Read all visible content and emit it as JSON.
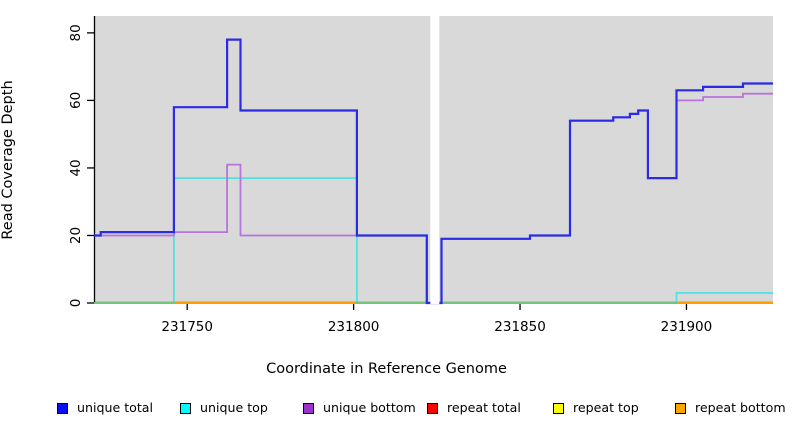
{
  "chart_data": {
    "type": "line",
    "subtype": "step",
    "title": "",
    "xlabel": "Coordinate in Reference Genome",
    "ylabel": "Read Coverage Depth",
    "xlim": [
      231722,
      231926
    ],
    "ylim": [
      0,
      85
    ],
    "xticks": [
      "231750",
      "231800",
      "231850",
      "231900"
    ],
    "xtick_values": [
      231750,
      231800,
      231850,
      231900
    ],
    "yticks": [
      "0",
      "20",
      "40",
      "60",
      "80"
    ],
    "ytick_values": [
      0,
      20,
      40,
      60,
      80
    ],
    "grid": false,
    "plot_background": "#D9D9D9",
    "axis_color": "#000000",
    "gap_region": {
      "x0": 231823.05,
      "x1": 231825.75,
      "color": "#FFFFFF",
      "meaning": "missing-data white band"
    },
    "series": [
      {
        "name": "repeat total",
        "color": "#E60000",
        "width": 2,
        "opacity": 1,
        "points": [
          [
            231722,
            0
          ],
          [
            231926,
            0
          ]
        ]
      },
      {
        "name": "repeat top",
        "color": "#FFFF00",
        "width": 2,
        "opacity": 1,
        "points": [
          [
            231722,
            0
          ],
          [
            231926,
            0
          ]
        ]
      },
      {
        "name": "repeat bottom",
        "color": "#FF9E00",
        "width": 2,
        "opacity": 1,
        "points": [
          [
            231722,
            0
          ],
          [
            231926,
            0
          ]
        ]
      },
      {
        "name": "unique top",
        "color": "#00E4E4",
        "width": 1.8,
        "opacity": 0.62,
        "points": [
          [
            231722,
            0
          ],
          [
            231746,
            37
          ],
          [
            231801,
            0
          ],
          [
            231897,
            3
          ],
          [
            231926,
            3
          ]
        ]
      },
      {
        "name": "unique bottom",
        "color": "#B873DC",
        "width": 1.8,
        "opacity": 1,
        "points": [
          [
            231722,
            20
          ],
          [
            231746,
            21
          ],
          [
            231762,
            41
          ],
          [
            231766,
            20
          ],
          [
            231822,
            0
          ],
          [
            231826.4,
            19
          ],
          [
            231853,
            20
          ],
          [
            231865,
            54
          ],
          [
            231878,
            55
          ],
          [
            231883,
            56
          ],
          [
            231885.5,
            57
          ],
          [
            231888.4,
            37
          ],
          [
            231897,
            60
          ],
          [
            231905,
            61
          ],
          [
            231917,
            62
          ],
          [
            231926,
            62
          ]
        ]
      },
      {
        "name": "unique total",
        "color": "#2B2BE6",
        "width": 2.2,
        "opacity": 1,
        "points": [
          [
            231722,
            20
          ],
          [
            231724,
            21
          ],
          [
            231746,
            58
          ],
          [
            231762,
            78
          ],
          [
            231766,
            57
          ],
          [
            231801,
            20
          ],
          [
            231822,
            0
          ],
          [
            231826.4,
            19
          ],
          [
            231853,
            20
          ],
          [
            231865,
            54
          ],
          [
            231878,
            55
          ],
          [
            231883,
            56
          ],
          [
            231885.5,
            57
          ],
          [
            231888.4,
            37
          ],
          [
            231897,
            63
          ],
          [
            231905,
            64
          ],
          [
            231917,
            65
          ],
          [
            231926,
            65
          ]
        ]
      }
    ],
    "legend_position": "bottom",
    "legend": {
      "items": [
        {
          "label": "unique total",
          "color": "#0D0DF2"
        },
        {
          "label": "unique top",
          "color": "#00FFFF"
        },
        {
          "label": "unique bottom",
          "color": "#9933CC"
        },
        {
          "label": "repeat total",
          "color": "#FF0000"
        },
        {
          "label": "repeat top",
          "color": "#FFFF00"
        },
        {
          "label": "repeat bottom",
          "color": "#FFA500"
        }
      ]
    }
  }
}
